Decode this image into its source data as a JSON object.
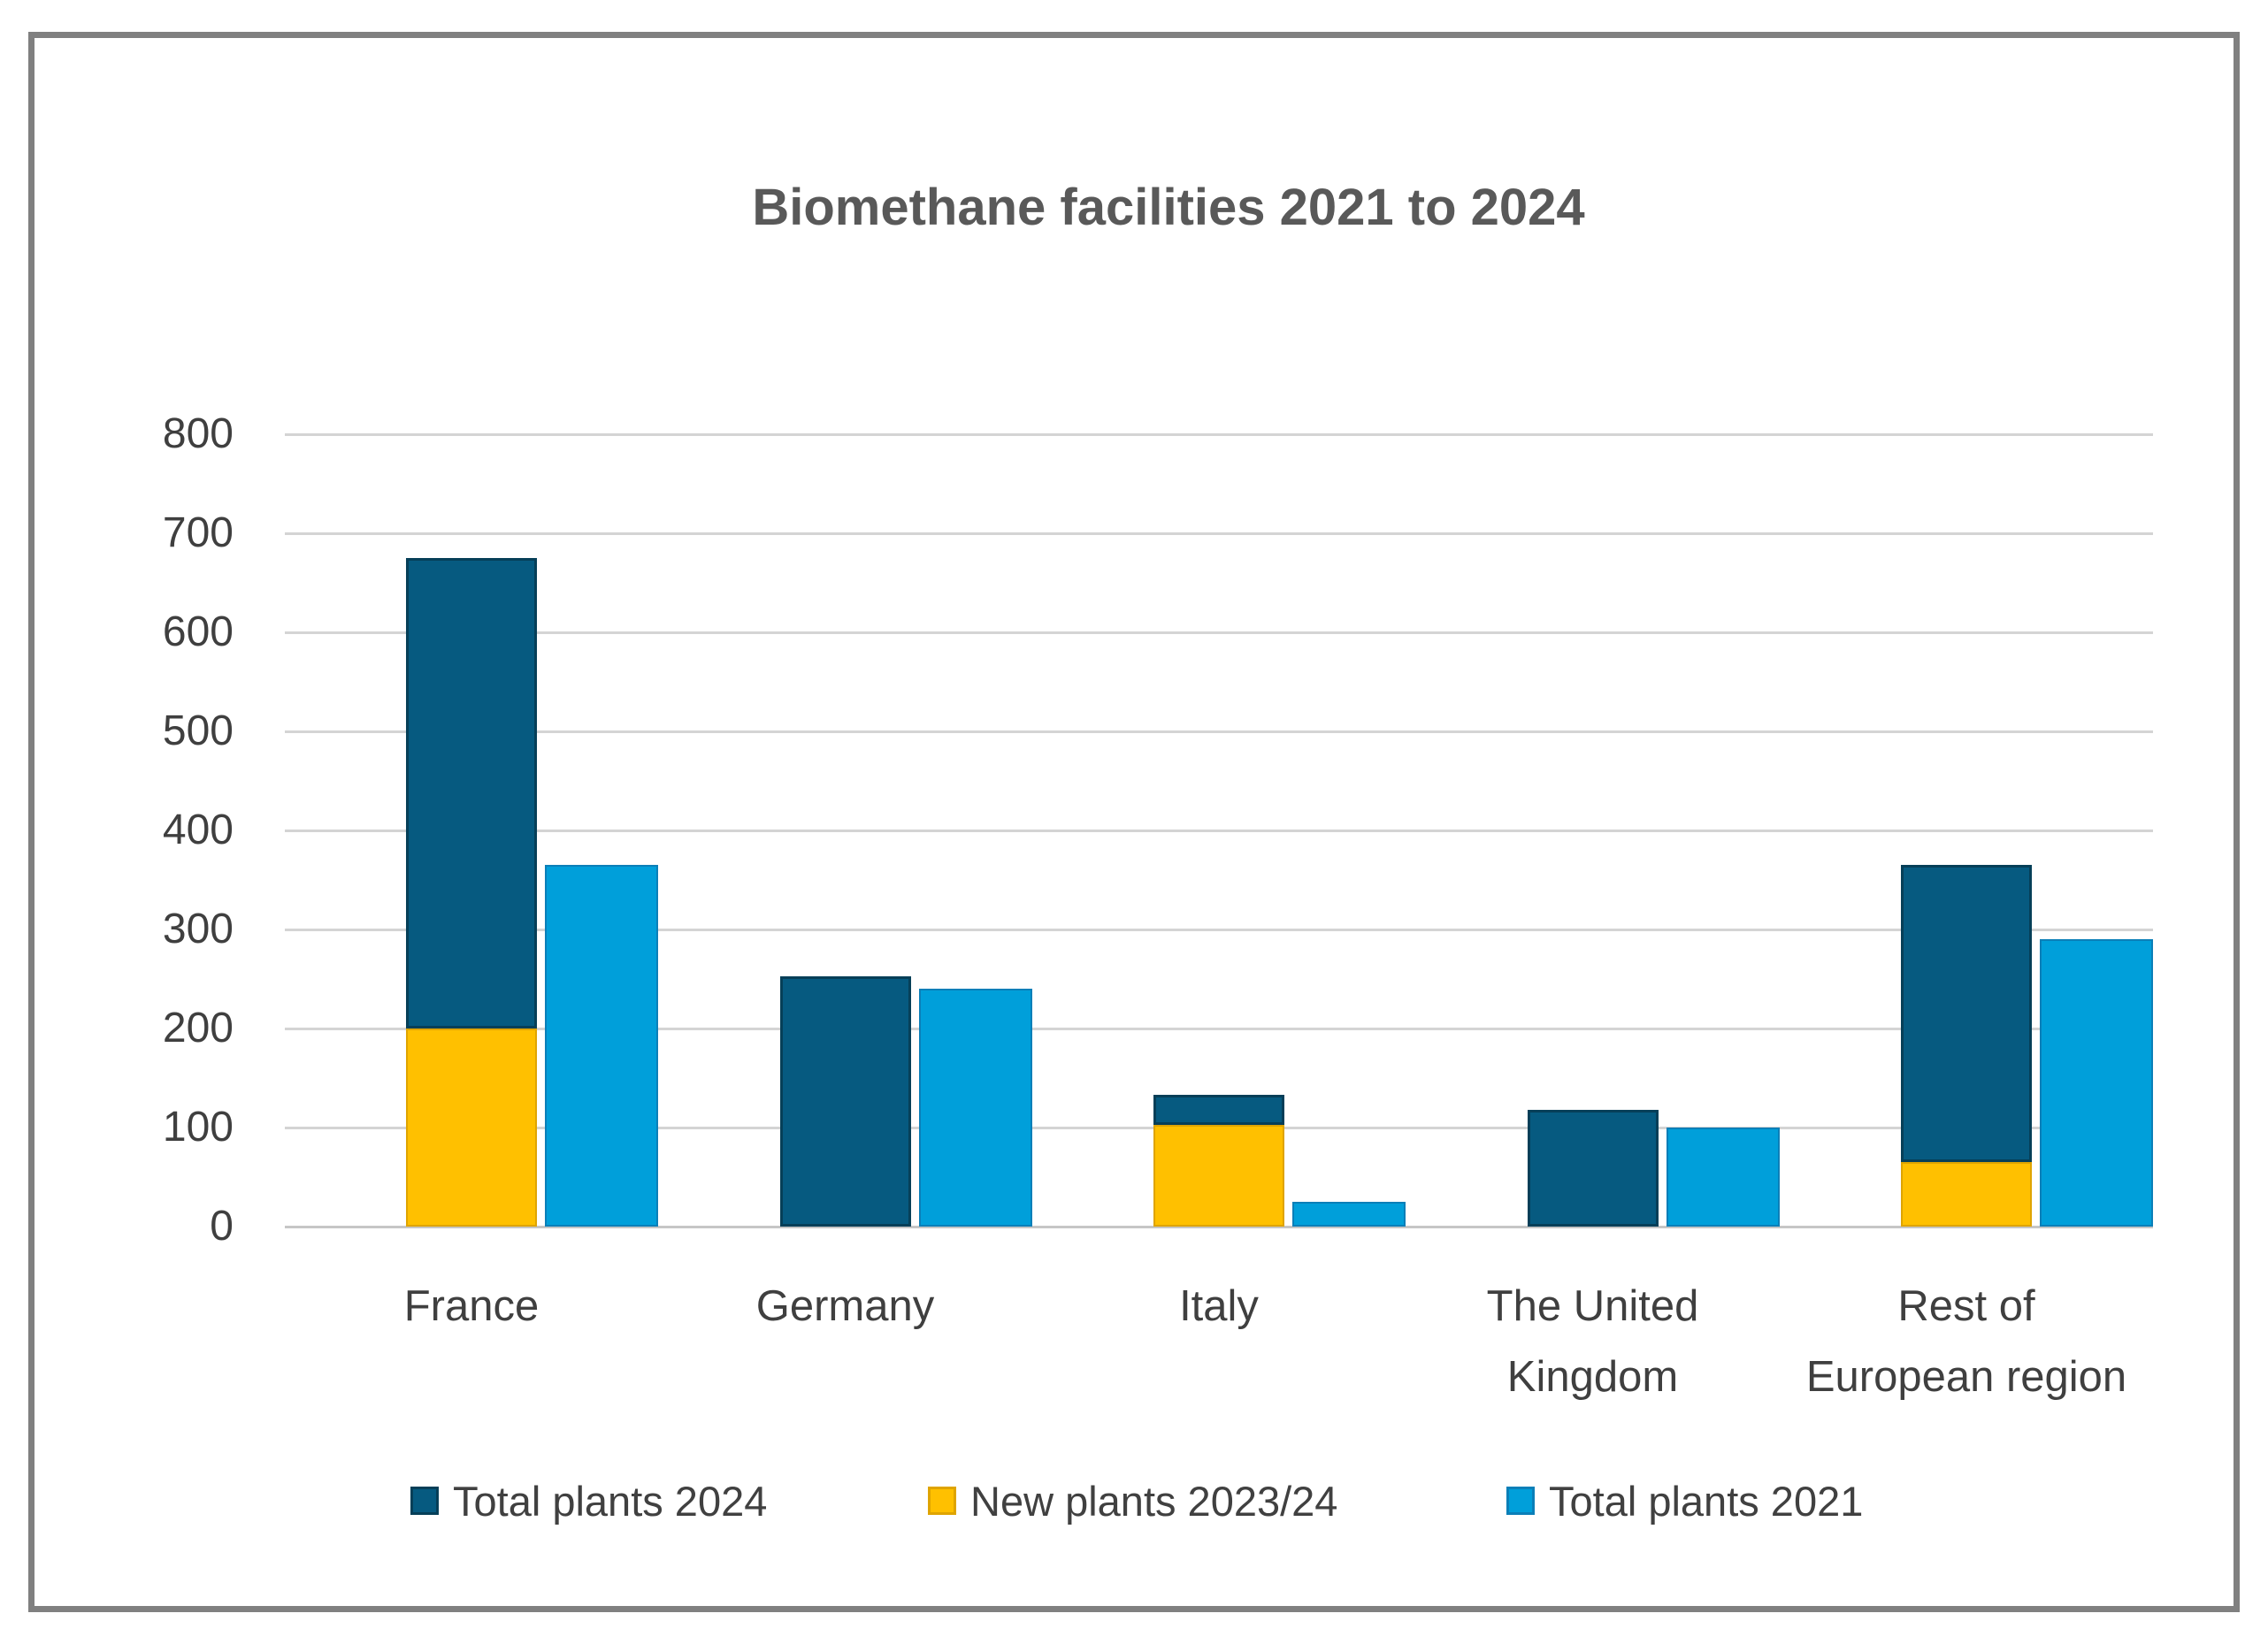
{
  "page": {
    "background": "#ffffff",
    "frame_border_color": "#808080"
  },
  "chart_data": {
    "type": "bar",
    "title": "Biomethane facilities 2021 to 2024",
    "title_color": "#595959",
    "categories": [
      "France",
      "Germany",
      "Italy",
      "The United Kingdom",
      "Rest of European region"
    ],
    "category_display_lines": [
      [
        "France"
      ],
      [
        "Germany"
      ],
      [
        "Italy"
      ],
      [
        "The United",
        "Kingdom"
      ],
      [
        "Rest of",
        "European region"
      ]
    ],
    "series": [
      {
        "name": "Total plants 2024",
        "color": "#065a80",
        "border_color": "#063f58",
        "values": [
          675,
          253,
          133,
          118,
          365
        ],
        "role": "total-2024-top-of-stack"
      },
      {
        "name": "New plants 2023/24",
        "color": "#ffc000",
        "border_color": "#dfa400",
        "values": [
          200,
          0,
          103,
          0,
          65
        ],
        "role": "bottom-of-stack"
      },
      {
        "name": "Total plants 2021",
        "color": "#009fda",
        "border_color": "#0b7fb8",
        "values": [
          365,
          240,
          25,
          100,
          290
        ],
        "role": "separate-column"
      }
    ],
    "ylim": [
      0,
      800
    ],
    "ytick_step": 100,
    "yticks": [
      0,
      100,
      200,
      300,
      400,
      500,
      600,
      700,
      800
    ],
    "grid": "horizontal",
    "gridline_color": "#d4d4d4",
    "axis_text_color": "#3f3f3f",
    "legend_position": "bottom"
  }
}
